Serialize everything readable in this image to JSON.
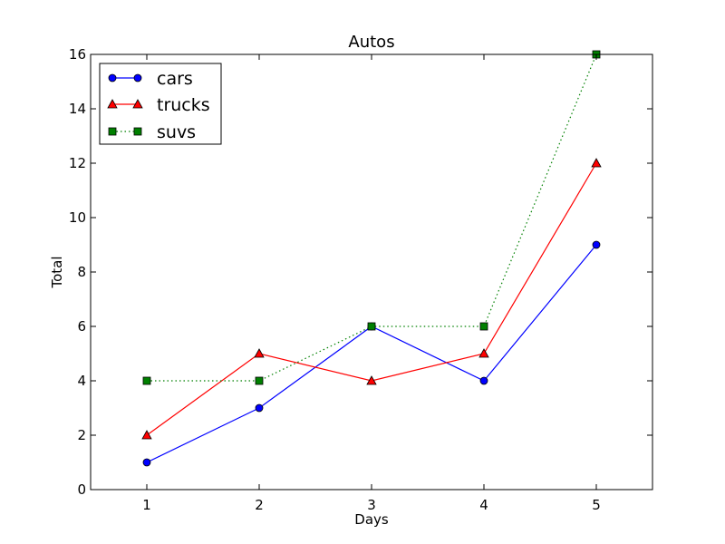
{
  "chart_data": {
    "type": "line",
    "title": "Autos",
    "xlabel": "Days",
    "ylabel": "Total",
    "x": [
      1,
      2,
      3,
      4,
      5
    ],
    "xlim": [
      0.5,
      5.5
    ],
    "ylim": [
      0,
      16
    ],
    "xticks": [
      "1",
      "2",
      "3",
      "4",
      "5"
    ],
    "yticks": [
      "0",
      "2",
      "4",
      "6",
      "8",
      "10",
      "12",
      "14",
      "16"
    ],
    "grid": false,
    "legend_position": "upper-left",
    "series": [
      {
        "name": "cars",
        "values": [
          1,
          3,
          6,
          4,
          9
        ],
        "color": "#0000ff",
        "marker": "circle",
        "line_style": "solid"
      },
      {
        "name": "trucks",
        "values": [
          2,
          5,
          4,
          5,
          12
        ],
        "color": "#ff0000",
        "marker": "triangle",
        "line_style": "solid"
      },
      {
        "name": "suvs",
        "values": [
          4,
          4,
          6,
          6,
          16
        ],
        "color": "#008000",
        "marker": "square",
        "line_style": "dotted"
      }
    ]
  }
}
